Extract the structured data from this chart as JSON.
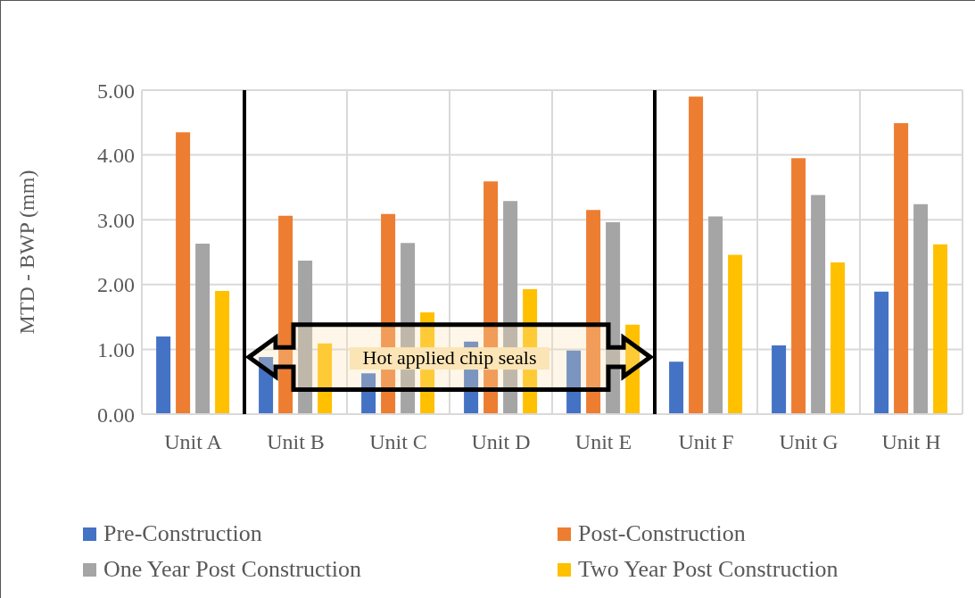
{
  "chart_data": {
    "type": "bar",
    "ylabel": "MTD - BWP (mm)",
    "categories": [
      "Unit A",
      "Unit B",
      "Unit C",
      "Unit D",
      "Unit E",
      "Unit F",
      "Unit G",
      "Unit H"
    ],
    "series": [
      {
        "name": "Pre-Construction",
        "color": "#4472c4",
        "values": [
          1.2,
          0.88,
          0.63,
          1.12,
          0.98,
          0.81,
          1.06,
          1.89
        ]
      },
      {
        "name": "Post-Construction",
        "color": "#ed7d31",
        "values": [
          4.35,
          3.06,
          3.09,
          3.59,
          3.15,
          4.9,
          3.95,
          4.49
        ]
      },
      {
        "name": "One Year Post Construction",
        "color": "#a5a5a5",
        "values": [
          2.63,
          2.37,
          2.64,
          3.29,
          2.96,
          3.05,
          3.38,
          3.24
        ]
      },
      {
        "name": "Two Year Post Construction",
        "color": "#ffc000",
        "values": [
          1.9,
          1.09,
          1.57,
          1.93,
          1.38,
          2.46,
          2.34,
          2.62
        ]
      }
    ],
    "ylim": [
      0,
      5
    ],
    "yticks": [
      {
        "value": 0,
        "label": "0.00"
      },
      {
        "value": 1,
        "label": "1.00"
      },
      {
        "value": 2,
        "label": "2.00"
      },
      {
        "value": 3,
        "label": "3.00"
      },
      {
        "value": 4,
        "label": "4.00"
      },
      {
        "value": 5,
        "label": "5.00"
      }
    ],
    "bands": [
      {
        "axis": "x",
        "from": "Unit B",
        "to": "Unit E",
        "label": "Hot applied chip seals",
        "color": "#fbe5b6"
      }
    ],
    "grid": true,
    "legend": "bottom"
  }
}
